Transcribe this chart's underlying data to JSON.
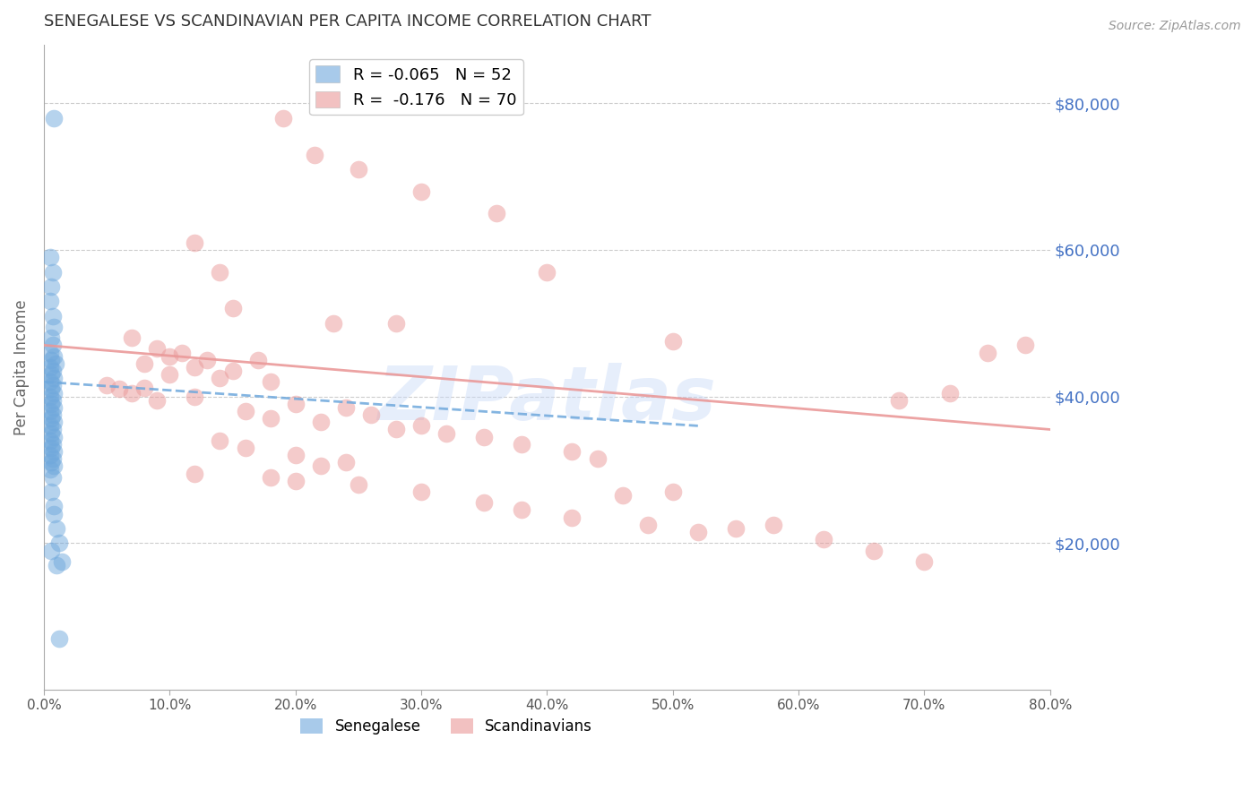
{
  "title": "SENEGALESE VS SCANDINAVIAN PER CAPITA INCOME CORRELATION CHART",
  "source": "Source: ZipAtlas.com",
  "ylabel": "Per Capita Income",
  "yticks": [
    0,
    20000,
    40000,
    60000,
    80000
  ],
  "ytick_labels": [
    "",
    "$20,000",
    "$40,000",
    "$60,000",
    "$80,000"
  ],
  "xlim": [
    0.0,
    0.8
  ],
  "ylim": [
    0,
    88000
  ],
  "watermark": "ZIPatlas",
  "senegalese_color": "#6fa8dc",
  "scandinavian_color": "#ea9999",
  "senegalese_scatter": [
    [
      0.008,
      78000
    ],
    [
      0.005,
      59000
    ],
    [
      0.007,
      57000
    ],
    [
      0.006,
      55000
    ],
    [
      0.005,
      53000
    ],
    [
      0.007,
      51000
    ],
    [
      0.008,
      49500
    ],
    [
      0.006,
      48000
    ],
    [
      0.007,
      47000
    ],
    [
      0.005,
      46000
    ],
    [
      0.008,
      45500
    ],
    [
      0.006,
      45000
    ],
    [
      0.009,
      44500
    ],
    [
      0.005,
      44000
    ],
    [
      0.007,
      43500
    ],
    [
      0.006,
      43000
    ],
    [
      0.008,
      42500
    ],
    [
      0.005,
      42000
    ],
    [
      0.007,
      41500
    ],
    [
      0.006,
      41000
    ],
    [
      0.008,
      40500
    ],
    [
      0.005,
      40000
    ],
    [
      0.007,
      39500
    ],
    [
      0.006,
      39000
    ],
    [
      0.008,
      38500
    ],
    [
      0.005,
      38000
    ],
    [
      0.007,
      37500
    ],
    [
      0.006,
      37000
    ],
    [
      0.008,
      36500
    ],
    [
      0.005,
      36000
    ],
    [
      0.007,
      35500
    ],
    [
      0.006,
      35000
    ],
    [
      0.008,
      34500
    ],
    [
      0.005,
      34000
    ],
    [
      0.007,
      33500
    ],
    [
      0.006,
      33000
    ],
    [
      0.008,
      32500
    ],
    [
      0.005,
      32000
    ],
    [
      0.007,
      31500
    ],
    [
      0.006,
      31000
    ],
    [
      0.008,
      30500
    ],
    [
      0.005,
      30000
    ],
    [
      0.007,
      29000
    ],
    [
      0.006,
      27000
    ],
    [
      0.008,
      25000
    ],
    [
      0.01,
      22000
    ],
    [
      0.012,
      20000
    ],
    [
      0.008,
      24000
    ],
    [
      0.006,
      19000
    ],
    [
      0.01,
      17000
    ],
    [
      0.012,
      7000
    ],
    [
      0.014,
      17500
    ]
  ],
  "scandinavian_scatter": [
    [
      0.22,
      82000
    ],
    [
      0.19,
      78000
    ],
    [
      0.215,
      73000
    ],
    [
      0.25,
      71000
    ],
    [
      0.3,
      68000
    ],
    [
      0.36,
      65000
    ],
    [
      0.12,
      61000
    ],
    [
      0.4,
      57000
    ],
    [
      0.14,
      57000
    ],
    [
      0.15,
      52000
    ],
    [
      0.23,
      50000
    ],
    [
      0.28,
      50000
    ],
    [
      0.5,
      47500
    ],
    [
      0.07,
      48000
    ],
    [
      0.09,
      46500
    ],
    [
      0.11,
      46000
    ],
    [
      0.1,
      45500
    ],
    [
      0.13,
      45000
    ],
    [
      0.17,
      45000
    ],
    [
      0.08,
      44500
    ],
    [
      0.12,
      44000
    ],
    [
      0.15,
      43500
    ],
    [
      0.1,
      43000
    ],
    [
      0.14,
      42500
    ],
    [
      0.18,
      42000
    ],
    [
      0.05,
      41500
    ],
    [
      0.08,
      41200
    ],
    [
      0.06,
      41000
    ],
    [
      0.07,
      40500
    ],
    [
      0.12,
      40000
    ],
    [
      0.09,
      39500
    ],
    [
      0.2,
      39000
    ],
    [
      0.24,
      38500
    ],
    [
      0.16,
      38000
    ],
    [
      0.26,
      37500
    ],
    [
      0.18,
      37000
    ],
    [
      0.22,
      36500
    ],
    [
      0.3,
      36000
    ],
    [
      0.28,
      35500
    ],
    [
      0.32,
      35000
    ],
    [
      0.35,
      34500
    ],
    [
      0.14,
      34000
    ],
    [
      0.38,
      33500
    ],
    [
      0.16,
      33000
    ],
    [
      0.42,
      32500
    ],
    [
      0.2,
      32000
    ],
    [
      0.44,
      31500
    ],
    [
      0.24,
      31000
    ],
    [
      0.22,
      30500
    ],
    [
      0.5,
      27000
    ],
    [
      0.46,
      26500
    ],
    [
      0.58,
      22500
    ],
    [
      0.55,
      22000
    ],
    [
      0.62,
      20500
    ],
    [
      0.66,
      19000
    ],
    [
      0.7,
      17500
    ],
    [
      0.75,
      46000
    ],
    [
      0.78,
      47000
    ],
    [
      0.72,
      40500
    ],
    [
      0.68,
      39500
    ],
    [
      0.12,
      29500
    ],
    [
      0.18,
      29000
    ],
    [
      0.2,
      28500
    ],
    [
      0.25,
      28000
    ],
    [
      0.3,
      27000
    ],
    [
      0.35,
      25500
    ],
    [
      0.38,
      24500
    ],
    [
      0.42,
      23500
    ],
    [
      0.48,
      22500
    ],
    [
      0.52,
      21500
    ]
  ],
  "background_color": "#ffffff",
  "grid_color": "#cccccc",
  "tick_label_color": "#4472c4",
  "title_color": "#333333",
  "ylabel_color": "#666666",
  "sen_line_x": [
    0.0,
    0.52
  ],
  "sen_line_y": [
    42000,
    36000
  ],
  "sca_line_x": [
    0.0,
    0.8
  ],
  "sca_line_y": [
    47000,
    35500
  ]
}
